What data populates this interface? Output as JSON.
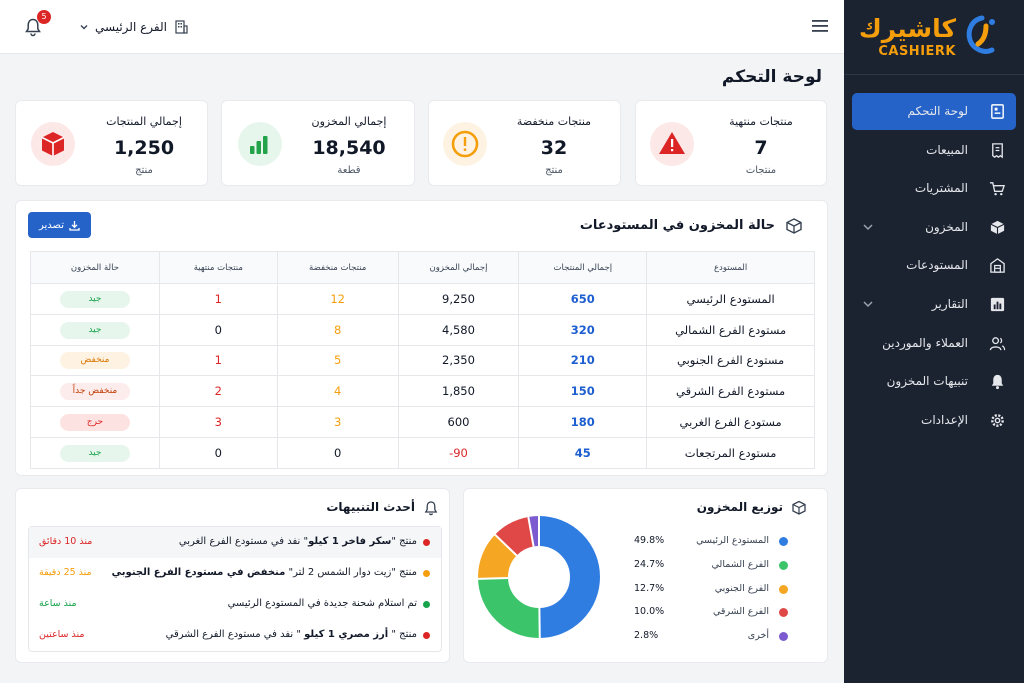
{
  "sidebar": {
    "logo_ar": "كاشيرك",
    "logo_en": "CASHIERK",
    "items": [
      {
        "label": "لوحة التحكم",
        "icon": "dashboard-icon",
        "active": true
      },
      {
        "label": "المبيعات",
        "icon": "receipt-icon"
      },
      {
        "label": "المشتريات",
        "icon": "cart-icon"
      },
      {
        "label": "المخزون",
        "icon": "box-icon",
        "expandable": true
      },
      {
        "label": "المستودعات",
        "icon": "warehouse-icon"
      },
      {
        "label": "التقارير",
        "icon": "reports-icon",
        "expandable": true
      },
      {
        "label": "العملاء والموردين",
        "icon": "users-icon"
      },
      {
        "label": "تنبيهات المخزون",
        "icon": "bell-icon"
      },
      {
        "label": "الإعدادات",
        "icon": "gear-icon"
      }
    ]
  },
  "topbar": {
    "branch": "الفرع الرئيسي",
    "notifications_count": "5"
  },
  "page_title": "لوحة التحكم",
  "stats": [
    {
      "label": "منتجات منتهية",
      "value": "7",
      "unit": "منتجات",
      "icon": "warning-icon",
      "color": "#dc2626"
    },
    {
      "label": "منتجات منخفضة",
      "value": "32",
      "unit": "منتج",
      "icon": "alert-circle-icon",
      "color": "#f59e0b"
    },
    {
      "label": "إجمالي المخزون",
      "value": "18,540",
      "unit": "قطعة",
      "icon": "bar-chart-icon",
      "color": "#22a34a"
    },
    {
      "label": "إجمالي المنتجات",
      "value": "1,250",
      "unit": "منتج",
      "icon": "product-box-icon",
      "color": "#dc2626"
    }
  ],
  "warehouses": {
    "title": "حالة المخزون في المستودعات",
    "export_label": "تصدير",
    "columns": [
      "المستودع",
      "إجمالي المنتجات",
      "إجمالي المخزون",
      "منتجات منخفضة",
      "منتجات منتهية",
      "حالة المخزون"
    ],
    "rows": [
      {
        "name": "المستودع الرئيسي",
        "products": "650",
        "stock": "9,250",
        "low": "12",
        "expired": "1",
        "status": "جيد",
        "status_kind": "good"
      },
      {
        "name": "مستودع الفرع الشمالي",
        "products": "320",
        "stock": "4,580",
        "low": "8",
        "expired": "0",
        "status": "جيد",
        "status_kind": "good"
      },
      {
        "name": "مستودع الفرع الجنوبي",
        "products": "210",
        "stock": "2,350",
        "low": "5",
        "expired": "1",
        "status": "منخفض",
        "status_kind": "low"
      },
      {
        "name": "مستودع الفرع الشرقي",
        "products": "150",
        "stock": "1,850",
        "low": "4",
        "expired": "2",
        "status": "منخفض جداً",
        "status_kind": "vlow"
      },
      {
        "name": "مستودع الفرع الغربي",
        "products": "180",
        "stock": "600",
        "low": "3",
        "expired": "3",
        "status": "حرج",
        "status_kind": "crit"
      },
      {
        "name": "مستودع المرتجعات",
        "products": "45",
        "stock": "-90",
        "low": "0",
        "expired": "0",
        "status": "جيد",
        "status_kind": "good"
      }
    ]
  },
  "alerts": {
    "title": "أحدث التنبيهات",
    "items": [
      {
        "pre": "منتج \"",
        "bold": "سكر فاخر 1 كيلو",
        "post": "\" نفد في مستودع الفرع الغربي",
        "time": "منذ 10 دقائق",
        "color": "#dc2626"
      },
      {
        "pre": "منتج \"زيت دوار الشمس 2 لتر\" ",
        "bold": "",
        "post": "منخفض في مستودع الفرع الجنوبي",
        "time": "منذ 25 دقيقة",
        "color": "#f59e0b"
      },
      {
        "pre": "تم استلام شحنة جديدة في المستودع الرئيسي",
        "bold": "",
        "post": "",
        "time": "منذ ساعة",
        "color": "#16a34a"
      },
      {
        "pre": "منتج \" ",
        "bold": "أرز مصري 1 كيلو",
        "post": " \" نفد في مستودع الفرع الشرقي",
        "time": "منذ ساعتين",
        "color": "#dc2626"
      }
    ]
  },
  "distribution": {
    "title": "توزيع المخزون",
    "items": [
      {
        "name": "المستودع الرئيسي",
        "pct": "49.8%",
        "value": 49.8,
        "color": "#2f7de1"
      },
      {
        "name": "الفرع الشمالي",
        "pct": "24.7%",
        "value": 24.7,
        "color": "#3cc46b"
      },
      {
        "name": "الفرع الجنوبي",
        "pct": "12.7%",
        "value": 12.7,
        "color": "#f5a623"
      },
      {
        "name": "الفرع الشرقي",
        "pct": "10.0%",
        "value": 10.0,
        "color": "#e04848"
      },
      {
        "name": "أخرى",
        "pct": "2.8%",
        "value": 2.8,
        "color": "#7c5bd1"
      }
    ]
  }
}
